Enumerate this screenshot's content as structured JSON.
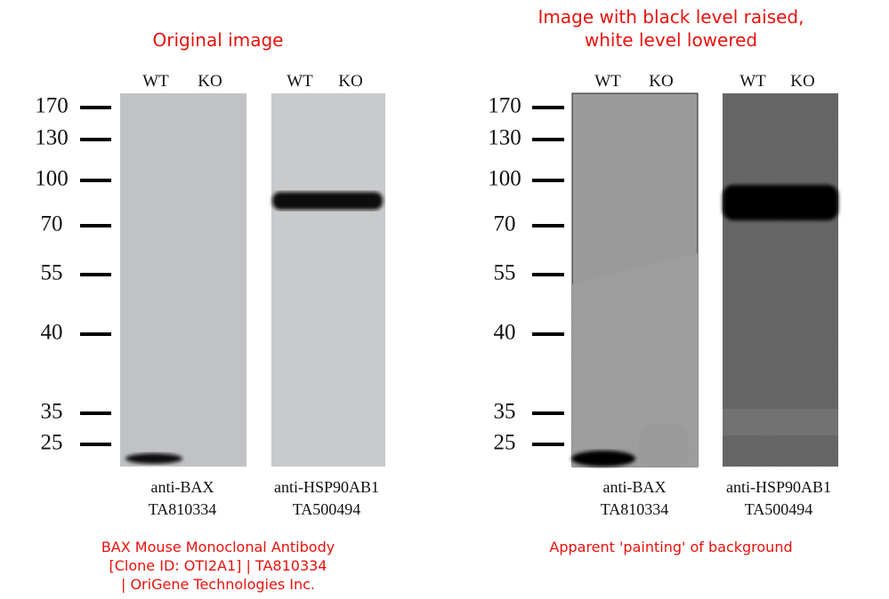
{
  "left": {
    "title": [
      "Original image"
    ],
    "markers": [
      170,
      130,
      100,
      70,
      55,
      40,
      35,
      25
    ],
    "blots": [
      {
        "lanes": [
          "WT",
          "KO"
        ],
        "antibody": "anti-BAX",
        "catalog": "TA810334"
      },
      {
        "lanes": [
          "WT",
          "KO"
        ],
        "antibody": "anti-HSP90AB1",
        "catalog": "TA500494"
      }
    ],
    "caption": [
      "BAX Mouse Monoclonal Antibody",
      "[Clone ID: OTI2A1] | TA810334",
      "| OriGene Technologies Inc."
    ]
  },
  "right": {
    "title": [
      "Image with black level raised,",
      "white level lowered"
    ],
    "markers": [
      170,
      130,
      100,
      70,
      55,
      40,
      35,
      25
    ],
    "blots": [
      {
        "lanes": [
          "WT",
          "KO"
        ],
        "antibody": "anti-BAX",
        "catalog": "TA810334"
      },
      {
        "lanes": [
          "WT",
          "KO"
        ],
        "antibody": "anti-HSP90AB1",
        "catalog": "TA500494"
      }
    ],
    "caption": [
      "Apparent 'painting' of background"
    ]
  }
}
